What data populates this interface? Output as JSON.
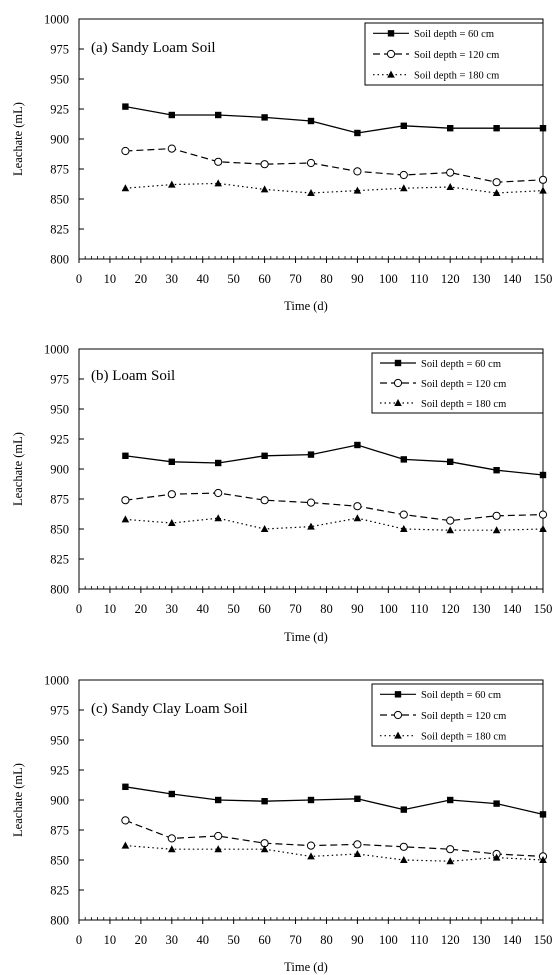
{
  "chart_data": [
    {
      "type": "line",
      "title": "(a) Sandy Loam Soil",
      "xlabel": "Time (d)",
      "ylabel": "Leachate (mL)",
      "xlim": [
        0,
        150
      ],
      "ylim": [
        800,
        1000
      ],
      "xticks": [
        "0",
        "10",
        "20",
        "30",
        "40",
        "50",
        "60",
        "70",
        "80",
        "90",
        "100",
        "110",
        "120",
        "130",
        "140",
        "150"
      ],
      "yticks": [
        "800",
        "825",
        "850",
        "875",
        "900",
        "925",
        "950",
        "975",
        "1000"
      ],
      "grid": false,
      "legend_position": "top-right",
      "x": [
        15,
        30,
        45,
        60,
        75,
        90,
        105,
        120,
        135,
        150
      ],
      "series": [
        {
          "name": "Soil depth = 60 cm",
          "values": [
            927,
            920,
            920,
            918,
            915,
            905,
            911,
            909,
            909,
            909
          ],
          "marker": "square-filled",
          "dash": "solid"
        },
        {
          "name": "Soil depth = 120 cm",
          "values": [
            890,
            892,
            881,
            879,
            880,
            873,
            870,
            872,
            864,
            866
          ],
          "marker": "circle-open",
          "dash": "dashed"
        },
        {
          "name": "Soil depth = 180 cm",
          "values": [
            859,
            862,
            863,
            858,
            855,
            857,
            859,
            860,
            855,
            857
          ],
          "marker": "triangle-filled",
          "dash": "dotted"
        }
      ]
    },
    {
      "type": "line",
      "title": "(b) Loam Soil",
      "xlabel": "Time (d)",
      "ylabel": "Leachate (mL)",
      "xlim": [
        0,
        150
      ],
      "ylim": [
        800,
        1000
      ],
      "xticks": [
        "0",
        "10",
        "20",
        "30",
        "40",
        "50",
        "60",
        "70",
        "80",
        "90",
        "100",
        "110",
        "120",
        "130",
        "140",
        "150"
      ],
      "yticks": [
        "800",
        "825",
        "850",
        "875",
        "900",
        "925",
        "950",
        "975",
        "1000"
      ],
      "grid": false,
      "legend_position": "top-right",
      "x": [
        15,
        30,
        45,
        60,
        75,
        90,
        105,
        120,
        135,
        150
      ],
      "series": [
        {
          "name": "Soil depth = 60 cm",
          "values": [
            911,
            906,
            905,
            911,
            912,
            920,
            908,
            906,
            899,
            895
          ],
          "marker": "square-filled",
          "dash": "solid"
        },
        {
          "name": "Soil depth = 120 cm",
          "values": [
            874,
            879,
            880,
            874,
            872,
            869,
            862,
            857,
            861,
            862
          ],
          "marker": "circle-open",
          "dash": "dashed"
        },
        {
          "name": "Soil depth = 180 cm",
          "values": [
            858,
            855,
            859,
            850,
            852,
            859,
            850,
            849,
            849,
            850
          ],
          "marker": "triangle-filled",
          "dash": "dotted"
        }
      ]
    },
    {
      "type": "line",
      "title": "(c) Sandy Clay Loam Soil",
      "xlabel": "Time (d)",
      "ylabel": "Leachate (mL)",
      "xlim": [
        0,
        150
      ],
      "ylim": [
        800,
        1000
      ],
      "xticks": [
        "0",
        "10",
        "20",
        "30",
        "40",
        "50",
        "60",
        "70",
        "80",
        "90",
        "100",
        "110",
        "120",
        "130",
        "140",
        "150"
      ],
      "yticks": [
        "800",
        "825",
        "850",
        "875",
        "900",
        "925",
        "950",
        "975",
        "1000"
      ],
      "grid": false,
      "legend_position": "top-right",
      "x": [
        15,
        30,
        45,
        60,
        75,
        90,
        105,
        120,
        135,
        150
      ],
      "series": [
        {
          "name": "Soil depth = 60 cm",
          "values": [
            911,
            905,
            900,
            899,
            900,
            901,
            892,
            900,
            897,
            888
          ],
          "marker": "square-filled",
          "dash": "solid"
        },
        {
          "name": "Soil depth = 120 cm",
          "values": [
            883,
            868,
            870,
            864,
            862,
            863,
            861,
            859,
            855,
            853
          ],
          "marker": "circle-open",
          "dash": "dashed"
        },
        {
          "name": "Soil depth = 180 cm",
          "values": [
            862,
            859,
            859,
            859,
            853,
            855,
            850,
            849,
            852,
            850
          ],
          "marker": "triangle-filled",
          "dash": "dotted"
        }
      ]
    }
  ]
}
